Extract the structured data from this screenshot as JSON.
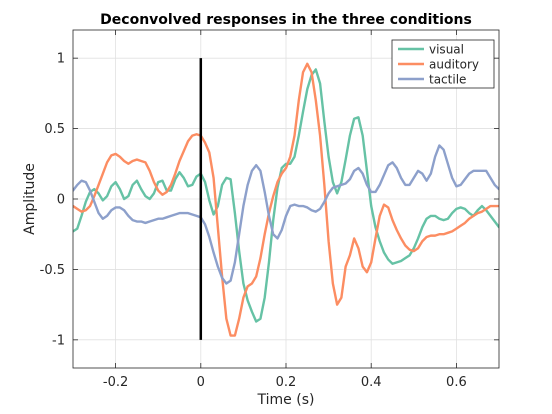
{
  "chart_data": {
    "type": "line",
    "title": "Deconvolved responses in the three conditions",
    "xlabel": "Time (s)",
    "ylabel": "Amplitude",
    "xlim": [
      -0.3,
      0.7
    ],
    "ylim": [
      -1.2,
      1.2
    ],
    "xticks": [
      -0.2,
      0,
      0.2,
      0.4,
      0.6
    ],
    "xtick_labels": [
      "-0.2",
      "0",
      "0.2",
      "0.4",
      "0.6"
    ],
    "yticks": [
      -1,
      -0.5,
      0,
      0.5,
      1
    ],
    "ytick_labels": [
      "-1",
      "-0.5",
      "0",
      "0.5",
      "1"
    ],
    "grid": true,
    "legend_position": "top-right",
    "stimulus_marker": {
      "x": 0,
      "y_range": [
        -1,
        1
      ],
      "color": "#000000"
    },
    "series": [
      {
        "name": "visual",
        "color": "#66c2a5",
        "points": [
          [
            -0.3,
            -0.23
          ],
          [
            -0.29,
            -0.21
          ],
          [
            -0.28,
            -0.12
          ],
          [
            -0.27,
            -0.02
          ],
          [
            -0.26,
            0.05
          ],
          [
            -0.25,
            0.07
          ],
          [
            -0.24,
            0.04
          ],
          [
            -0.23,
            -0.01
          ],
          [
            -0.22,
            0.02
          ],
          [
            -0.21,
            0.09
          ],
          [
            -0.2,
            0.12
          ],
          [
            -0.19,
            0.07
          ],
          [
            -0.18,
            0.0
          ],
          [
            -0.17,
            0.02
          ],
          [
            -0.16,
            0.1
          ],
          [
            -0.15,
            0.13
          ],
          [
            -0.14,
            0.07
          ],
          [
            -0.13,
            0.02
          ],
          [
            -0.12,
            0.0
          ],
          [
            -0.11,
            0.04
          ],
          [
            -0.1,
            0.12
          ],
          [
            -0.09,
            0.13
          ],
          [
            -0.08,
            0.06
          ],
          [
            -0.07,
            0.06
          ],
          [
            -0.06,
            0.14
          ],
          [
            -0.05,
            0.19
          ],
          [
            -0.04,
            0.15
          ],
          [
            -0.03,
            0.09
          ],
          [
            -0.02,
            0.1
          ],
          [
            -0.01,
            0.16
          ],
          [
            0.0,
            0.18
          ],
          [
            0.01,
            0.12
          ],
          [
            0.02,
            -0.01
          ],
          [
            0.03,
            -0.11
          ],
          [
            0.04,
            -0.05
          ],
          [
            0.05,
            0.1
          ],
          [
            0.06,
            0.15
          ],
          [
            0.07,
            0.14
          ],
          [
            0.08,
            -0.1
          ],
          [
            0.09,
            -0.37
          ],
          [
            0.1,
            -0.6
          ],
          [
            0.11,
            -0.72
          ],
          [
            0.12,
            -0.8
          ],
          [
            0.13,
            -0.87
          ],
          [
            0.14,
            -0.85
          ],
          [
            0.15,
            -0.7
          ],
          [
            0.16,
            -0.45
          ],
          [
            0.17,
            -0.15
          ],
          [
            0.18,
            0.08
          ],
          [
            0.19,
            0.22
          ],
          [
            0.2,
            0.25
          ],
          [
            0.21,
            0.25
          ],
          [
            0.22,
            0.3
          ],
          [
            0.23,
            0.45
          ],
          [
            0.24,
            0.62
          ],
          [
            0.25,
            0.78
          ],
          [
            0.26,
            0.88
          ],
          [
            0.27,
            0.92
          ],
          [
            0.28,
            0.82
          ],
          [
            0.29,
            0.55
          ],
          [
            0.3,
            0.3
          ],
          [
            0.31,
            0.12
          ],
          [
            0.32,
            0.04
          ],
          [
            0.33,
            0.12
          ],
          [
            0.34,
            0.28
          ],
          [
            0.35,
            0.45
          ],
          [
            0.36,
            0.57
          ],
          [
            0.37,
            0.58
          ],
          [
            0.38,
            0.45
          ],
          [
            0.39,
            0.2
          ],
          [
            0.4,
            -0.05
          ],
          [
            0.41,
            -0.2
          ],
          [
            0.42,
            -0.3
          ],
          [
            0.43,
            -0.38
          ],
          [
            0.44,
            -0.43
          ],
          [
            0.45,
            -0.46
          ],
          [
            0.46,
            -0.45
          ],
          [
            0.47,
            -0.44
          ],
          [
            0.48,
            -0.42
          ],
          [
            0.49,
            -0.4
          ],
          [
            0.5,
            -0.35
          ],
          [
            0.51,
            -0.28
          ],
          [
            0.52,
            -0.2
          ],
          [
            0.53,
            -0.14
          ],
          [
            0.54,
            -0.12
          ],
          [
            0.55,
            -0.12
          ],
          [
            0.56,
            -0.14
          ],
          [
            0.57,
            -0.15
          ],
          [
            0.58,
            -0.14
          ],
          [
            0.59,
            -0.1
          ],
          [
            0.6,
            -0.07
          ],
          [
            0.61,
            -0.06
          ],
          [
            0.62,
            -0.07
          ],
          [
            0.63,
            -0.1
          ],
          [
            0.64,
            -0.12
          ],
          [
            0.65,
            -0.08
          ],
          [
            0.66,
            -0.05
          ],
          [
            0.67,
            -0.08
          ],
          [
            0.68,
            -0.12
          ],
          [
            0.69,
            -0.16
          ],
          [
            0.7,
            -0.2
          ]
        ]
      },
      {
        "name": "auditory",
        "color": "#fc8d62",
        "points": [
          [
            -0.3,
            -0.05
          ],
          [
            -0.29,
            -0.07
          ],
          [
            -0.28,
            -0.09
          ],
          [
            -0.27,
            -0.08
          ],
          [
            -0.26,
            -0.05
          ],
          [
            -0.25,
            0.02
          ],
          [
            -0.24,
            0.1
          ],
          [
            -0.23,
            0.18
          ],
          [
            -0.22,
            0.26
          ],
          [
            -0.21,
            0.31
          ],
          [
            -0.2,
            0.32
          ],
          [
            -0.19,
            0.3
          ],
          [
            -0.18,
            0.27
          ],
          [
            -0.17,
            0.25
          ],
          [
            -0.16,
            0.27
          ],
          [
            -0.15,
            0.28
          ],
          [
            -0.14,
            0.27
          ],
          [
            -0.13,
            0.26
          ],
          [
            -0.12,
            0.2
          ],
          [
            -0.11,
            0.12
          ],
          [
            -0.1,
            0.06
          ],
          [
            -0.09,
            0.03
          ],
          [
            -0.08,
            0.05
          ],
          [
            -0.07,
            0.1
          ],
          [
            -0.06,
            0.18
          ],
          [
            -0.05,
            0.27
          ],
          [
            -0.04,
            0.34
          ],
          [
            -0.03,
            0.41
          ],
          [
            -0.02,
            0.45
          ],
          [
            -0.01,
            0.46
          ],
          [
            0.0,
            0.45
          ],
          [
            0.01,
            0.4
          ],
          [
            0.02,
            0.33
          ],
          [
            0.03,
            0.15
          ],
          [
            0.04,
            -0.2
          ],
          [
            0.05,
            -0.55
          ],
          [
            0.06,
            -0.85
          ],
          [
            0.07,
            -0.97
          ],
          [
            0.08,
            -0.97
          ],
          [
            0.09,
            -0.85
          ],
          [
            0.1,
            -0.7
          ],
          [
            0.11,
            -0.62
          ],
          [
            0.12,
            -0.6
          ],
          [
            0.13,
            -0.55
          ],
          [
            0.14,
            -0.42
          ],
          [
            0.15,
            -0.25
          ],
          [
            0.16,
            -0.1
          ],
          [
            0.17,
            0.02
          ],
          [
            0.18,
            0.12
          ],
          [
            0.19,
            0.18
          ],
          [
            0.2,
            0.22
          ],
          [
            0.21,
            0.3
          ],
          [
            0.22,
            0.45
          ],
          [
            0.23,
            0.7
          ],
          [
            0.24,
            0.9
          ],
          [
            0.25,
            0.96
          ],
          [
            0.26,
            0.9
          ],
          [
            0.27,
            0.7
          ],
          [
            0.28,
            0.45
          ],
          [
            0.29,
            0.1
          ],
          [
            0.3,
            -0.3
          ],
          [
            0.31,
            -0.6
          ],
          [
            0.32,
            -0.75
          ],
          [
            0.33,
            -0.7
          ],
          [
            0.34,
            -0.48
          ],
          [
            0.35,
            -0.4
          ],
          [
            0.36,
            -0.28
          ],
          [
            0.37,
            -0.35
          ],
          [
            0.38,
            -0.48
          ],
          [
            0.39,
            -0.52
          ],
          [
            0.4,
            -0.45
          ],
          [
            0.41,
            -0.28
          ],
          [
            0.42,
            -0.12
          ],
          [
            0.43,
            -0.04
          ],
          [
            0.44,
            -0.06
          ],
          [
            0.45,
            -0.15
          ],
          [
            0.46,
            -0.22
          ],
          [
            0.47,
            -0.28
          ],
          [
            0.48,
            -0.33
          ],
          [
            0.49,
            -0.36
          ],
          [
            0.5,
            -0.37
          ],
          [
            0.51,
            -0.35
          ],
          [
            0.52,
            -0.3
          ],
          [
            0.53,
            -0.27
          ],
          [
            0.54,
            -0.26
          ],
          [
            0.55,
            -0.26
          ],
          [
            0.56,
            -0.25
          ],
          [
            0.57,
            -0.25
          ],
          [
            0.58,
            -0.24
          ],
          [
            0.59,
            -0.23
          ],
          [
            0.6,
            -0.21
          ],
          [
            0.61,
            -0.19
          ],
          [
            0.62,
            -0.17
          ],
          [
            0.63,
            -0.14
          ],
          [
            0.64,
            -0.12
          ],
          [
            0.65,
            -0.1
          ],
          [
            0.66,
            -0.09
          ],
          [
            0.67,
            -0.07
          ],
          [
            0.68,
            -0.05
          ],
          [
            0.69,
            -0.05
          ],
          [
            0.7,
            -0.05
          ]
        ]
      },
      {
        "name": "tactile",
        "color": "#8da0cb",
        "points": [
          [
            -0.3,
            0.06
          ],
          [
            -0.29,
            0.1
          ],
          [
            -0.28,
            0.13
          ],
          [
            -0.27,
            0.12
          ],
          [
            -0.26,
            0.06
          ],
          [
            -0.25,
            -0.02
          ],
          [
            -0.24,
            -0.1
          ],
          [
            -0.23,
            -0.14
          ],
          [
            -0.22,
            -0.12
          ],
          [
            -0.21,
            -0.08
          ],
          [
            -0.2,
            -0.06
          ],
          [
            -0.19,
            -0.06
          ],
          [
            -0.18,
            -0.08
          ],
          [
            -0.17,
            -0.12
          ],
          [
            -0.16,
            -0.15
          ],
          [
            -0.15,
            -0.16
          ],
          [
            -0.14,
            -0.16
          ],
          [
            -0.13,
            -0.17
          ],
          [
            -0.12,
            -0.16
          ],
          [
            -0.11,
            -0.15
          ],
          [
            -0.1,
            -0.14
          ],
          [
            -0.09,
            -0.14
          ],
          [
            -0.08,
            -0.13
          ],
          [
            -0.07,
            -0.12
          ],
          [
            -0.06,
            -0.11
          ],
          [
            -0.05,
            -0.1
          ],
          [
            -0.04,
            -0.1
          ],
          [
            -0.03,
            -0.1
          ],
          [
            -0.02,
            -0.11
          ],
          [
            -0.01,
            -0.12
          ],
          [
            0.0,
            -0.13
          ],
          [
            0.01,
            -0.18
          ],
          [
            0.02,
            -0.27
          ],
          [
            0.03,
            -0.38
          ],
          [
            0.04,
            -0.48
          ],
          [
            0.05,
            -0.56
          ],
          [
            0.06,
            -0.6
          ],
          [
            0.07,
            -0.58
          ],
          [
            0.08,
            -0.45
          ],
          [
            0.09,
            -0.25
          ],
          [
            0.1,
            -0.05
          ],
          [
            0.11,
            0.1
          ],
          [
            0.12,
            0.2
          ],
          [
            0.13,
            0.24
          ],
          [
            0.14,
            0.2
          ],
          [
            0.15,
            0.05
          ],
          [
            0.16,
            -0.12
          ],
          [
            0.17,
            -0.25
          ],
          [
            0.18,
            -0.28
          ],
          [
            0.19,
            -0.22
          ],
          [
            0.2,
            -0.12
          ],
          [
            0.21,
            -0.05
          ],
          [
            0.22,
            -0.04
          ],
          [
            0.23,
            -0.05
          ],
          [
            0.24,
            -0.05
          ],
          [
            0.25,
            -0.06
          ],
          [
            0.26,
            -0.08
          ],
          [
            0.27,
            -0.09
          ],
          [
            0.28,
            -0.07
          ],
          [
            0.29,
            -0.02
          ],
          [
            0.3,
            0.04
          ],
          [
            0.31,
            0.08
          ],
          [
            0.32,
            0.09
          ],
          [
            0.33,
            0.1
          ],
          [
            0.34,
            0.11
          ],
          [
            0.35,
            0.14
          ],
          [
            0.36,
            0.2
          ],
          [
            0.37,
            0.22
          ],
          [
            0.38,
            0.18
          ],
          [
            0.39,
            0.1
          ],
          [
            0.4,
            0.05
          ],
          [
            0.41,
            0.05
          ],
          [
            0.42,
            0.1
          ],
          [
            0.43,
            0.17
          ],
          [
            0.44,
            0.24
          ],
          [
            0.45,
            0.26
          ],
          [
            0.46,
            0.22
          ],
          [
            0.47,
            0.15
          ],
          [
            0.48,
            0.1
          ],
          [
            0.49,
            0.1
          ],
          [
            0.5,
            0.15
          ],
          [
            0.51,
            0.2
          ],
          [
            0.52,
            0.18
          ],
          [
            0.53,
            0.13
          ],
          [
            0.54,
            0.18
          ],
          [
            0.55,
            0.3
          ],
          [
            0.56,
            0.38
          ],
          [
            0.57,
            0.35
          ],
          [
            0.58,
            0.25
          ],
          [
            0.59,
            0.15
          ],
          [
            0.6,
            0.09
          ],
          [
            0.61,
            0.1
          ],
          [
            0.62,
            0.14
          ],
          [
            0.63,
            0.18
          ],
          [
            0.64,
            0.2
          ],
          [
            0.65,
            0.2
          ],
          [
            0.66,
            0.2
          ],
          [
            0.67,
            0.2
          ],
          [
            0.68,
            0.15
          ],
          [
            0.69,
            0.1
          ],
          [
            0.7,
            0.07
          ]
        ]
      }
    ]
  }
}
